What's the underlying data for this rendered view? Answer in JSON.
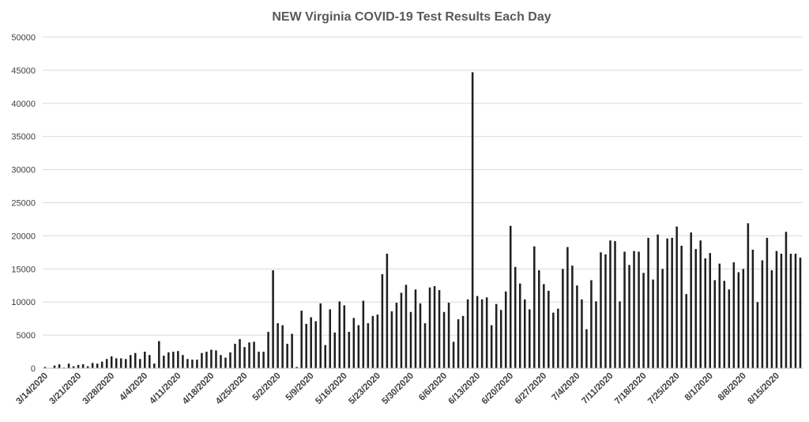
{
  "chart_data": {
    "type": "bar",
    "title": "NEW Virginia COVID-19 Test Results Each Day",
    "xlabel": "",
    "ylabel": "",
    "ylim": [
      0,
      50000
    ],
    "yticks": [
      "0",
      "5000",
      "10000",
      "15000",
      "20000",
      "25000",
      "30000",
      "35000",
      "40000",
      "45000",
      "50000"
    ],
    "grid": true,
    "legend": "none",
    "bar_color": "#1f1f1f",
    "xtick_labels": [
      "3/14/2020",
      "3/21/2020",
      "3/28/2020",
      "4/4/2020",
      "4/11/2020",
      "4/18/2020",
      "4/25/2020",
      "5/2/2020",
      "5/9/2020",
      "5/16/2020",
      "5/23/2020",
      "5/30/2020",
      "6/6/2020",
      "6/13/2020",
      "6/20/2020",
      "6/27/2020",
      "7/4/2020",
      "7/11/2020",
      "7/18/2020",
      "7/25/2020",
      "8/1/2020",
      "8/8/2020",
      "8/15/2020"
    ],
    "first_date": "3/14/2020",
    "last_date": "8/19/2020",
    "values": [
      200,
      50,
      400,
      600,
      100,
      700,
      300,
      500,
      600,
      300,
      800,
      700,
      1000,
      1400,
      1800,
      1500,
      1500,
      1400,
      2000,
      2300,
      1400,
      2500,
      2000,
      700,
      4100,
      1900,
      2400,
      2500,
      2600,
      2000,
      1400,
      1300,
      1300,
      2300,
      2500,
      2800,
      2700,
      2000,
      1600,
      2400,
      3700,
      4400,
      3200,
      3900,
      4000,
      2500,
      2500,
      5500,
      14800,
      6800,
      6500,
      3700,
      5200,
      200,
      8700,
      6700,
      7700,
      7100,
      9800,
      3500,
      8900,
      5400,
      10100,
      9500,
      5500,
      7600,
      6500,
      10200,
      6800,
      7900,
      8100,
      14200,
      17300,
      8600,
      9900,
      11400,
      12600,
      8500,
      11900,
      9800,
      6800,
      12200,
      12400,
      11800,
      8500,
      9900,
      4000,
      7400,
      7900,
      10400,
      44700,
      10900,
      10400,
      10700,
      6500,
      9700,
      8800,
      11600,
      21500,
      15300,
      12800,
      10400,
      8900,
      18400,
      14800,
      12700,
      11700,
      8400,
      9000,
      15000,
      18300,
      15500,
      12500,
      10400,
      5900,
      13300,
      10100,
      17500,
      17200,
      19300,
      19200,
      10100,
      17600,
      15600,
      17700,
      17600,
      14400,
      19700,
      13400,
      20200,
      15000,
      19600,
      19700,
      21400,
      18500,
      11200,
      20500,
      18000,
      19300,
      16600,
      17400,
      13300,
      15800,
      13200,
      11900,
      16000,
      14500,
      15000,
      21900,
      17900,
      10000,
      16300,
      19700,
      14800,
      17700,
      17300,
      20600,
      17300,
      17300,
      16700
    ]
  }
}
